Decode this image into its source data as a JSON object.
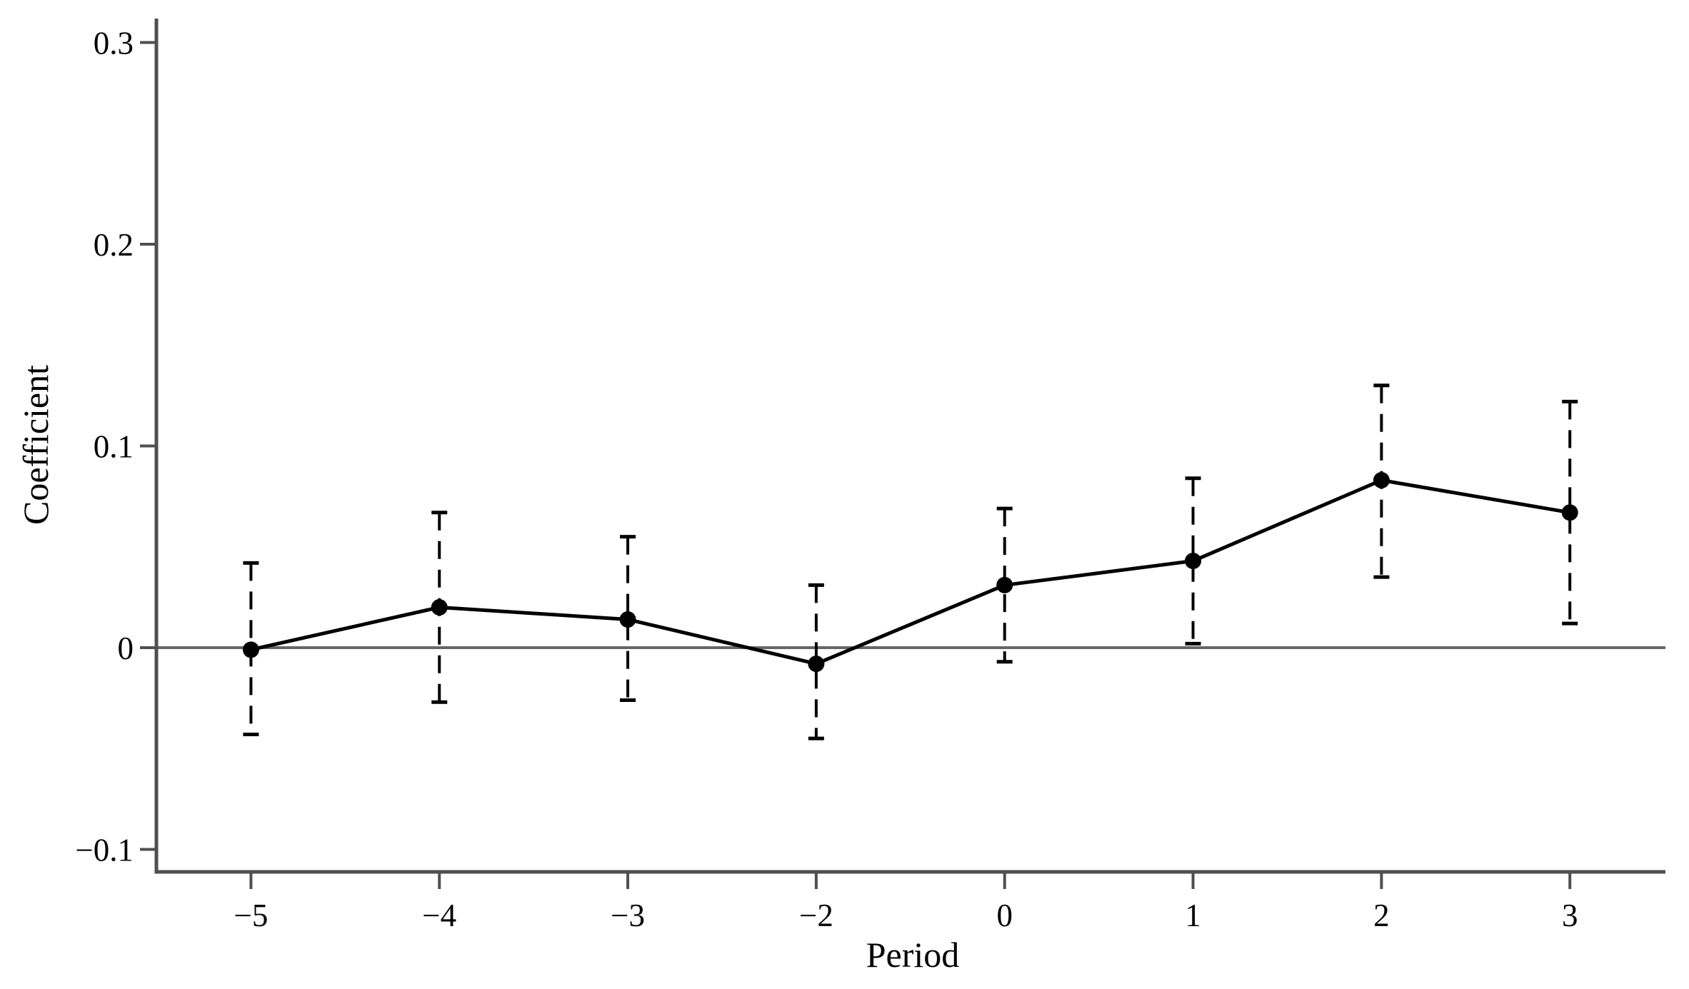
{
  "page": {
    "background": "#ffffff"
  },
  "chart_data": {
    "type": "line",
    "subtype": "event-study-coefficient-plot",
    "title": "",
    "xlabel": "Period",
    "ylabel": "Coefficient",
    "x_categories": [
      "−5",
      "−4",
      "−3",
      "−2",
      "0",
      "1",
      "2",
      "3"
    ],
    "y_ticks": [
      -0.1,
      0,
      0.1,
      0.2,
      0.3
    ],
    "y_tick_labels": [
      "−0.1",
      "0",
      "0.1",
      "0.2",
      "0.3"
    ],
    "ylim": [
      -0.112,
      0.312
    ],
    "grid": false,
    "legend": "none",
    "zero_reference_line": 0,
    "marker": "filled-circle",
    "line_style": "solid",
    "ci_style": "dashed-capped-error-bars",
    "colors": {
      "data": "#000000",
      "axis": "#4f4f4f",
      "zero_line": "#666666",
      "text": "#000000"
    },
    "series": [
      {
        "name": "Coefficient",
        "points": [
          {
            "period": "−5",
            "coef": -0.001,
            "ci_low": -0.043,
            "ci_high": 0.042
          },
          {
            "period": "−4",
            "coef": 0.02,
            "ci_low": -0.027,
            "ci_high": 0.067
          },
          {
            "period": "−3",
            "coef": 0.014,
            "ci_low": -0.026,
            "ci_high": 0.055
          },
          {
            "period": "−2",
            "coef": -0.008,
            "ci_low": -0.045,
            "ci_high": 0.031
          },
          {
            "period": "0",
            "coef": 0.031,
            "ci_low": -0.007,
            "ci_high": 0.069
          },
          {
            "period": "1",
            "coef": 0.043,
            "ci_low": 0.002,
            "ci_high": 0.084
          },
          {
            "period": "2",
            "coef": 0.083,
            "ci_low": 0.035,
            "ci_high": 0.13
          },
          {
            "period": "3",
            "coef": 0.067,
            "ci_low": 0.012,
            "ci_high": 0.122
          }
        ]
      }
    ]
  }
}
